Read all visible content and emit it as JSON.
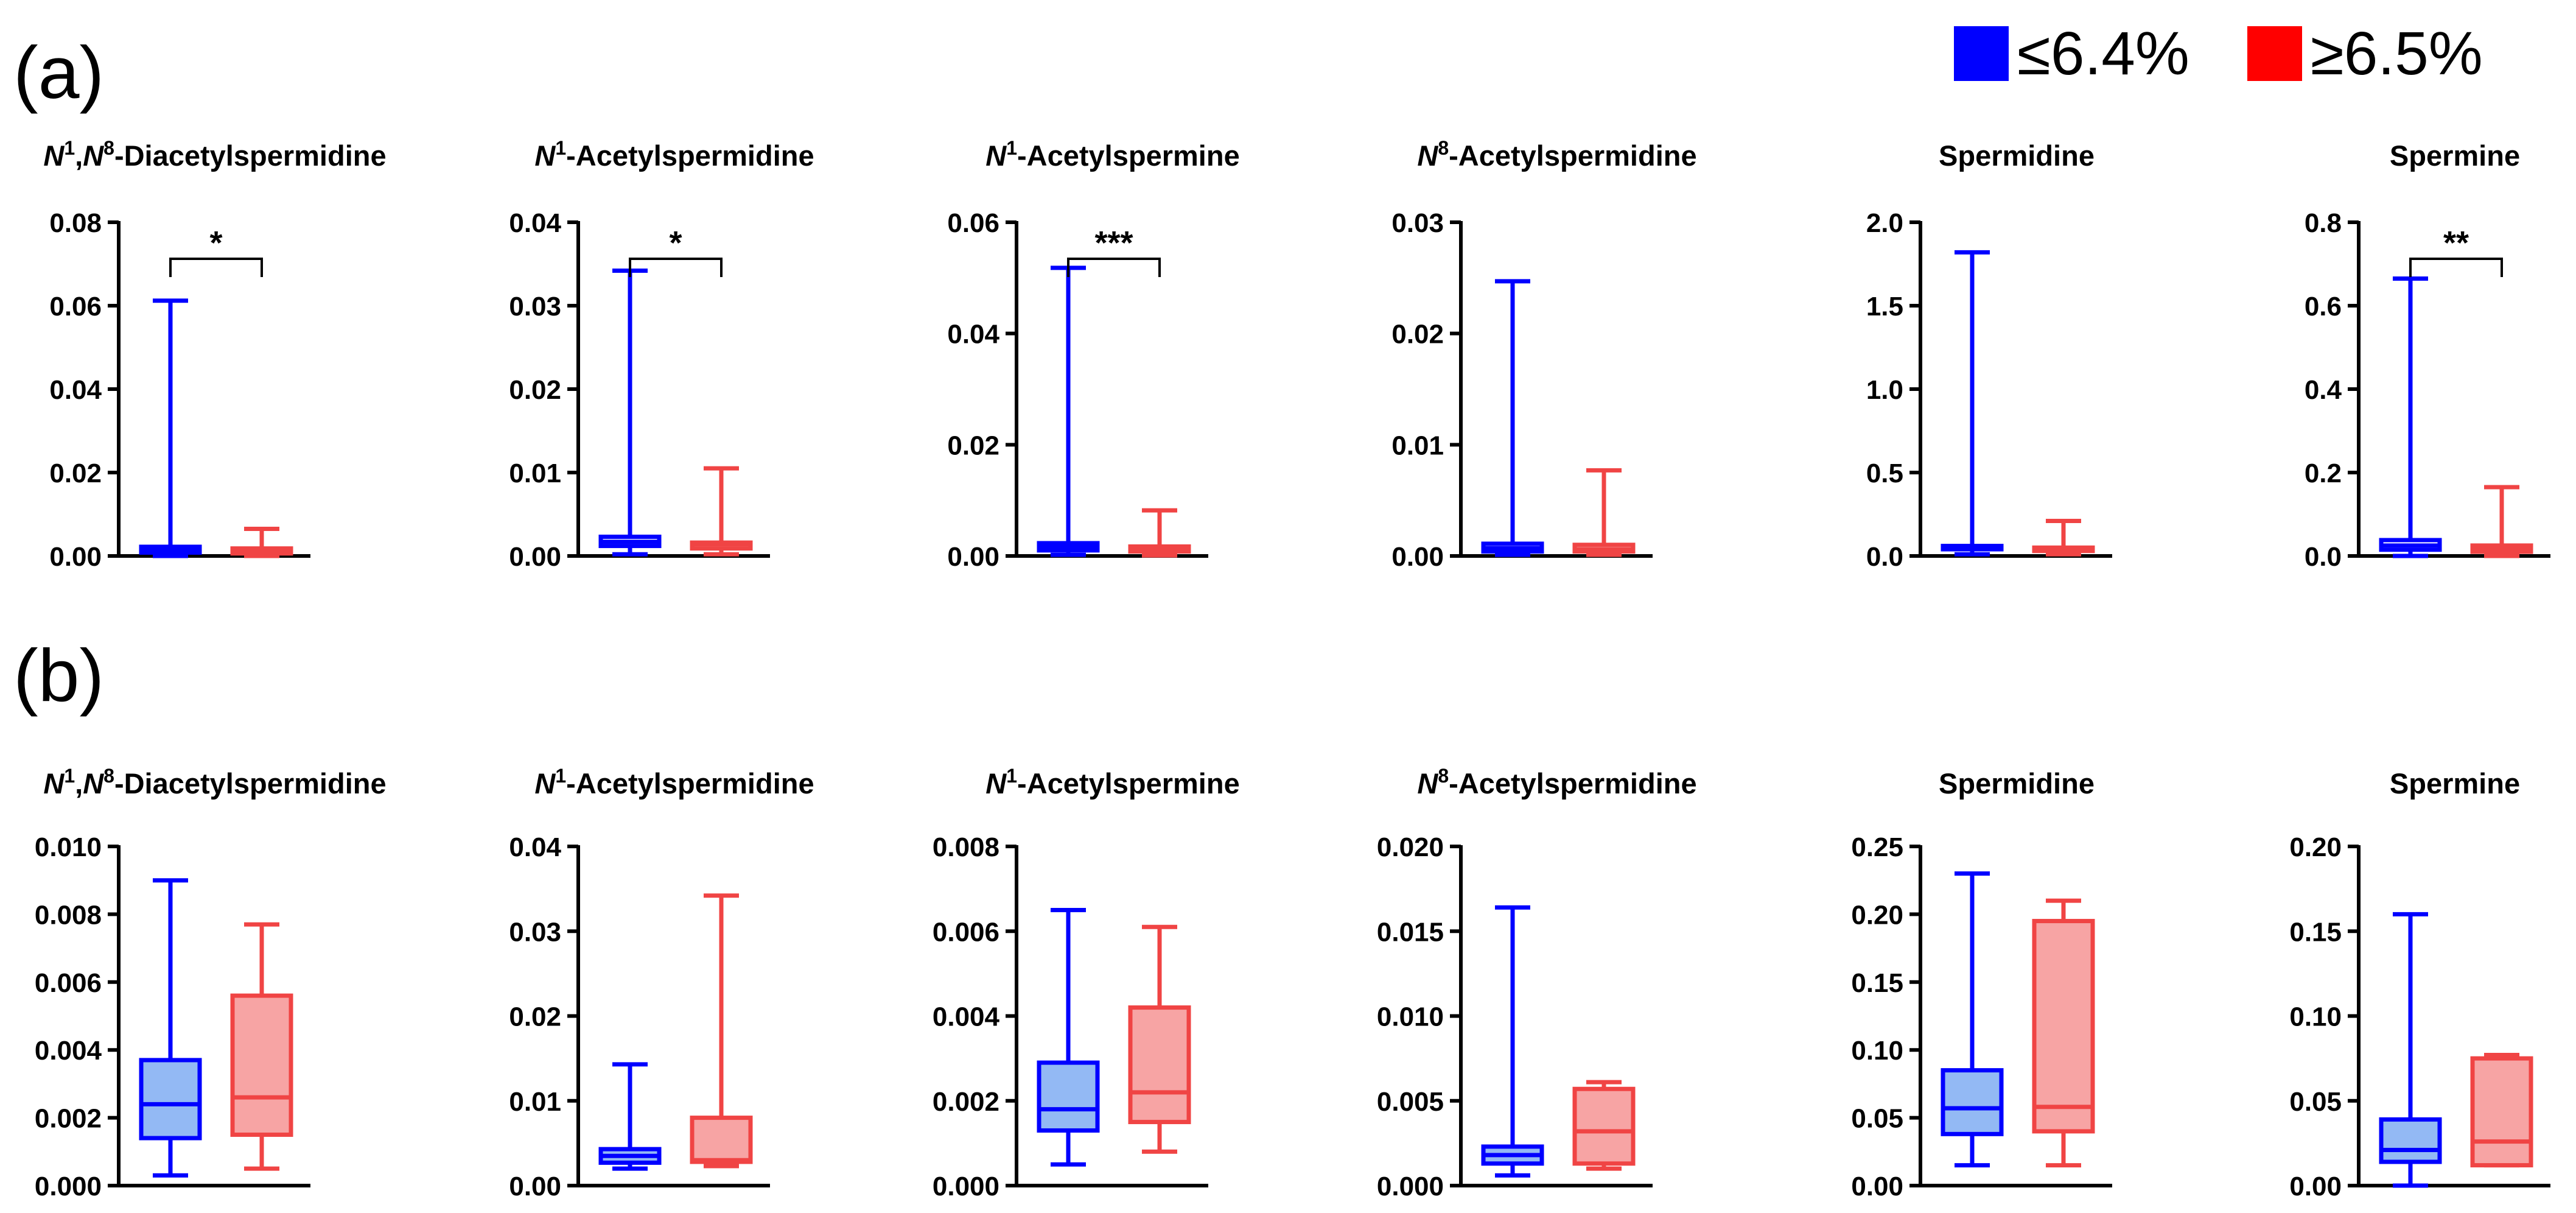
{
  "panels": {
    "a": "(a)",
    "b": "(b)"
  },
  "legend": {
    "items": [
      {
        "label": "≤6.4%",
        "color": "#0000ff"
      },
      {
        "label": "≥6.5%",
        "color": "#ff0000"
      }
    ]
  },
  "colors": {
    "blue": "#0000ff",
    "blue_fill": "#93b9f4",
    "red": "#f04444",
    "red_fill": "#f7a4a4"
  },
  "chart_data": [
    {
      "type": "box",
      "panel": "a",
      "title": "N1,N8-Diacetylspermidine",
      "title_parts": [
        {
          "t": "N",
          "i": true
        },
        {
          "t": "1",
          "s": true
        },
        {
          "t": ",",
          "i": false
        },
        {
          "t": "N",
          "i": true
        },
        {
          "t": "8",
          "s": true
        },
        {
          "t": "-Diacetylspermidine",
          "i": false
        }
      ],
      "ylim": [
        0,
        0.08
      ],
      "yticks": [
        "0.00",
        "0.02",
        "0.04",
        "0.06",
        "0.08"
      ],
      "significance": "*",
      "series": [
        {
          "name": "≤6.4%",
          "min": 0.0,
          "q1": 0.0008,
          "median": 0.0014,
          "q3": 0.0022,
          "max": 0.0612
        },
        {
          "name": "≥6.5%",
          "min": 0.0,
          "q1": 0.0006,
          "median": 0.0012,
          "q3": 0.0018,
          "max": 0.0065
        }
      ]
    },
    {
      "type": "box",
      "panel": "a",
      "title": "N1-Acetylspermidine",
      "title_parts": [
        {
          "t": "N",
          "i": true
        },
        {
          "t": "1",
          "s": true
        },
        {
          "t": "-Acetylspermidine",
          "i": false
        }
      ],
      "ylim": [
        0,
        0.04
      ],
      "yticks": [
        "0.00",
        "0.01",
        "0.02",
        "0.03",
        "0.04"
      ],
      "significance": "*",
      "series": [
        {
          "name": "≤6.4%",
          "min": 0.0002,
          "q1": 0.0012,
          "median": 0.0017,
          "q3": 0.0023,
          "max": 0.0342
        },
        {
          "name": "≥6.5%",
          "min": 0.0002,
          "q1": 0.0009,
          "median": 0.0014,
          "q3": 0.0016,
          "max": 0.0105
        }
      ]
    },
    {
      "type": "box",
      "panel": "a",
      "title": "N1-Acetylspermine",
      "title_parts": [
        {
          "t": "N",
          "i": true
        },
        {
          "t": "1",
          "s": true
        },
        {
          "t": "-Acetylspermine",
          "i": false
        }
      ],
      "ylim": [
        0,
        0.06
      ],
      "yticks": [
        "0.00",
        "0.02",
        "0.04",
        "0.06"
      ],
      "significance": "***",
      "series": [
        {
          "name": "≤6.4%",
          "min": 0.0002,
          "q1": 0.001,
          "median": 0.0016,
          "q3": 0.0023,
          "max": 0.0518
        },
        {
          "name": "≥6.5%",
          "min": 0.0001,
          "q1": 0.0008,
          "median": 0.0012,
          "q3": 0.0017,
          "max": 0.0082
        }
      ]
    },
    {
      "type": "box",
      "panel": "a",
      "title": "N8-Acetylspermidine",
      "title_parts": [
        {
          "t": "N",
          "i": true
        },
        {
          "t": "8",
          "s": true
        },
        {
          "t": "-Acetylspermidine",
          "i": false
        }
      ],
      "ylim": [
        0,
        0.03
      ],
      "yticks": [
        "0.00",
        "0.01",
        "0.02",
        "0.03"
      ],
      "significance": "",
      "series": [
        {
          "name": "≤6.4%",
          "min": 0.0001,
          "q1": 0.0004,
          "median": 0.0007,
          "q3": 0.0011,
          "max": 0.0247
        },
        {
          "name": "≥6.5%",
          "min": 0.0001,
          "q1": 0.0004,
          "median": 0.0006,
          "q3": 0.001,
          "max": 0.0077
        }
      ]
    },
    {
      "type": "box",
      "panel": "a",
      "title": "Spermidine",
      "title_parts": [
        {
          "t": "Spermidine",
          "i": false
        }
      ],
      "ylim": [
        0,
        2.0
      ],
      "yticks": [
        "0.0",
        "0.5",
        "1.0",
        "1.5",
        "2.0"
      ],
      "significance": "",
      "series": [
        {
          "name": "≤6.4%",
          "min": 0.01,
          "q1": 0.04,
          "median": 0.05,
          "q3": 0.06,
          "max": 1.82
        },
        {
          "name": "≥6.5%",
          "min": 0.01,
          "q1": 0.03,
          "median": 0.04,
          "q3": 0.05,
          "max": 0.21
        }
      ]
    },
    {
      "type": "box",
      "panel": "a",
      "title": "Spermine",
      "title_parts": [
        {
          "t": "Spermine",
          "i": false
        }
      ],
      "ylim": [
        0,
        0.8
      ],
      "yticks": [
        "0.0",
        "0.2",
        "0.4",
        "0.6",
        "0.8"
      ],
      "significance": "**",
      "series": [
        {
          "name": "≤6.4%",
          "min": 0.0,
          "q1": 0.015,
          "median": 0.025,
          "q3": 0.038,
          "max": 0.665
        },
        {
          "name": "≥6.5%",
          "min": 0.0,
          "q1": 0.01,
          "median": 0.018,
          "q3": 0.025,
          "max": 0.165
        }
      ]
    },
    {
      "type": "box",
      "panel": "b",
      "title": "N1,N8-Diacetylspermidine",
      "title_parts": [
        {
          "t": "N",
          "i": true
        },
        {
          "t": "1",
          "s": true
        },
        {
          "t": ",",
          "i": false
        },
        {
          "t": "N",
          "i": true
        },
        {
          "t": "8",
          "s": true
        },
        {
          "t": "-Diacetylspermidine",
          "i": false
        }
      ],
      "ylim": [
        0,
        0.01
      ],
      "yticks": [
        "0.000",
        "0.002",
        "0.004",
        "0.006",
        "0.008",
        "0.010"
      ],
      "significance": "",
      "series": [
        {
          "name": "≤6.4%",
          "min": 0.0003,
          "q1": 0.0014,
          "median": 0.0024,
          "q3": 0.0037,
          "max": 0.009
        },
        {
          "name": "≥6.5%",
          "min": 0.0005,
          "q1": 0.0015,
          "median": 0.0026,
          "q3": 0.0056,
          "max": 0.0077
        }
      ]
    },
    {
      "type": "box",
      "panel": "b",
      "title": "N1-Acetylspermidine",
      "title_parts": [
        {
          "t": "N",
          "i": true
        },
        {
          "t": "1",
          "s": true
        },
        {
          "t": "-Acetylspermidine",
          "i": false
        }
      ],
      "ylim": [
        0,
        0.04
      ],
      "yticks": [
        "0.00",
        "0.01",
        "0.02",
        "0.03",
        "0.04"
      ],
      "significance": "",
      "series": [
        {
          "name": "≤6.4%",
          "min": 0.002,
          "q1": 0.0027,
          "median": 0.0035,
          "q3": 0.0043,
          "max": 0.0143
        },
        {
          "name": "≥6.5%",
          "min": 0.0023,
          "q1": 0.0028,
          "median": 0.003,
          "q3": 0.008,
          "max": 0.0342
        }
      ]
    },
    {
      "type": "box",
      "panel": "b",
      "title": "N1-Acetylspermine",
      "title_parts": [
        {
          "t": "N",
          "i": true
        },
        {
          "t": "1",
          "s": true
        },
        {
          "t": "-Acetylspermine",
          "i": false
        }
      ],
      "ylim": [
        0,
        0.008
      ],
      "yticks": [
        "0.000",
        "0.002",
        "0.004",
        "0.006",
        "0.008"
      ],
      "significance": "",
      "series": [
        {
          "name": "≤6.4%",
          "min": 0.0005,
          "q1": 0.0013,
          "median": 0.0018,
          "q3": 0.0029,
          "max": 0.0065
        },
        {
          "name": "≥6.5%",
          "min": 0.0008,
          "q1": 0.0015,
          "median": 0.0022,
          "q3": 0.0042,
          "max": 0.0061
        }
      ]
    },
    {
      "type": "box",
      "panel": "b",
      "title": "N8-Acetylspermidine",
      "title_parts": [
        {
          "t": "N",
          "i": true
        },
        {
          "t": "8",
          "s": true
        },
        {
          "t": "-Acetylspermidine",
          "i": false
        }
      ],
      "ylim": [
        0,
        0.02
      ],
      "yticks": [
        "0.000",
        "0.005",
        "0.010",
        "0.015",
        "0.020"
      ],
      "significance": "",
      "series": [
        {
          "name": "≤6.4%",
          "min": 0.0006,
          "q1": 0.0013,
          "median": 0.0018,
          "q3": 0.0023,
          "max": 0.0164
        },
        {
          "name": "≥6.5%",
          "min": 0.001,
          "q1": 0.0013,
          "median": 0.0032,
          "q3": 0.0057,
          "max": 0.0061
        }
      ]
    },
    {
      "type": "box",
      "panel": "b",
      "title": "Spermidine",
      "title_parts": [
        {
          "t": "Spermidine",
          "i": false
        }
      ],
      "ylim": [
        0,
        0.25
      ],
      "yticks": [
        "0.00",
        "0.05",
        "0.10",
        "0.15",
        "0.20",
        "0.25"
      ],
      "significance": "",
      "series": [
        {
          "name": "≤6.4%",
          "min": 0.015,
          "q1": 0.038,
          "median": 0.057,
          "q3": 0.085,
          "max": 0.23
        },
        {
          "name": "≥6.5%",
          "min": 0.015,
          "q1": 0.04,
          "median": 0.058,
          "q3": 0.195,
          "max": 0.21
        }
      ]
    },
    {
      "type": "box",
      "panel": "b",
      "title": "Spermine",
      "title_parts": [
        {
          "t": "Spermine",
          "i": false
        }
      ],
      "ylim": [
        0,
        0.2
      ],
      "yticks": [
        "0.00",
        "0.05",
        "0.10",
        "0.15",
        "0.20"
      ],
      "significance": "",
      "series": [
        {
          "name": "≤6.4%",
          "min": 0.0,
          "q1": 0.014,
          "median": 0.021,
          "q3": 0.039,
          "max": 0.16
        },
        {
          "name": "≥6.5%",
          "min": 0.012,
          "q1": 0.012,
          "median": 0.026,
          "q3": 0.075,
          "max": 0.077
        }
      ]
    }
  ]
}
